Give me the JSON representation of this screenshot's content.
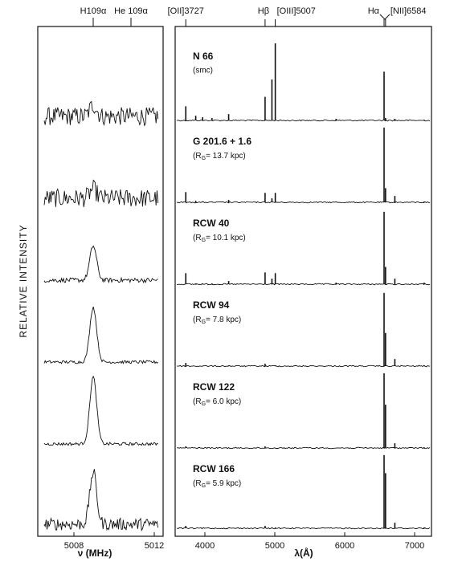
{
  "chart_data": {
    "type": "spectra",
    "ylabel": "RELATIVE INTENSITY",
    "radio": {
      "xlabel": "ν (MHz)",
      "xlim": [
        5006.2,
        5012.44
      ],
      "xticks": [
        5008,
        5012
      ],
      "line_labels": [
        {
          "text": "H109α",
          "x": 5008.96
        },
        {
          "text": "He 109α",
          "x": 5010.84
        }
      ]
    },
    "optical": {
      "xlabel": "λ(Å)",
      "xlim": [
        3575,
        7241
      ],
      "xticks": [
        4000,
        5000,
        6000,
        7000
      ],
      "line_labels": [
        {
          "text": "[OII]3727",
          "x": 3727
        },
        {
          "text": "Hβ",
          "x": 4861
        },
        {
          "text": "[OIII]5007",
          "x": 5007
        },
        {
          "text": "Hα",
          "x": 6563
        },
        {
          "text": "[NII]6584",
          "x": 6584
        }
      ],
      "lines": [
        3727,
        3869,
        3968,
        4102,
        4340,
        4861,
        4959,
        5007,
        5876,
        6563,
        6584,
        6717,
        7136
      ]
    },
    "objects": [
      {
        "name": "N 66",
        "note": "(smc)",
        "radio_peak": 0.15,
        "radio_noise": 0.12,
        "heights": [
          0.18,
          0.06,
          0.04,
          0.03,
          0.08,
          0.3,
          0.52,
          0.98,
          0.02,
          0.62,
          0.03,
          0.02,
          0.01
        ]
      },
      {
        "name": "G 201.6 + 1.6",
        "note": {
          "pre": "(R",
          "sub": "G",
          "post": "= 13.7 kpc)"
        },
        "radio_peak": 0.12,
        "radio_noise": 0.12,
        "heights": [
          0.13,
          0.02,
          0.01,
          0.01,
          0.03,
          0.12,
          0.05,
          0.12,
          0.01,
          0.95,
          0.18,
          0.08,
          0.01
        ]
      },
      {
        "name": "RCW 40",
        "note": {
          "pre": "(R",
          "sub": "G",
          "post": "= 10.1 kpc)"
        },
        "radio_peak": 0.45,
        "radio_noise": 0.03,
        "heights": [
          0.14,
          0.01,
          0.01,
          0.01,
          0.04,
          0.15,
          0.07,
          0.14,
          0.02,
          0.92,
          0.22,
          0.07,
          0.02
        ]
      },
      {
        "name": "RCW 94",
        "note": {
          "pre": "(R",
          "sub": "G",
          "post": "= 7.8 kpc)"
        },
        "radio_peak": 0.72,
        "radio_noise": 0.02,
        "heights": [
          0.04,
          0,
          0,
          0,
          0.01,
          0.03,
          0,
          0.01,
          0,
          0.93,
          0.42,
          0.09,
          0.01
        ]
      },
      {
        "name": "RCW 122",
        "note": {
          "pre": "(R",
          "sub": "G",
          "post": "= 6.0 kpc)"
        },
        "radio_peak": 0.88,
        "radio_noise": 0.02,
        "heights": [
          0.02,
          0,
          0,
          0,
          0,
          0.02,
          0,
          0,
          0,
          0.95,
          0.55,
          0.06,
          0.01
        ]
      },
      {
        "name": "RCW 166",
        "note": {
          "pre": "(R",
          "sub": "G",
          "post": "= 5.9 kpc)"
        },
        "radio_peak": 0.68,
        "radio_noise": 0.08,
        "heights": [
          0.03,
          0,
          0,
          0,
          0.01,
          0.03,
          0,
          0.01,
          0,
          0.93,
          0.7,
          0.07,
          0.01
        ]
      }
    ]
  }
}
